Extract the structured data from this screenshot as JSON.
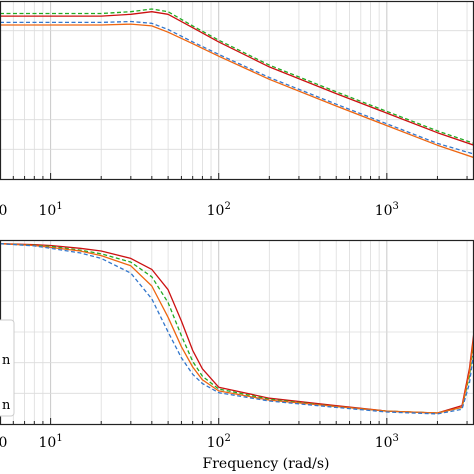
{
  "chart_data": [
    {
      "type": "line",
      "panel": "magnitude",
      "x_scale": "log",
      "xlim": [
        5,
        3300
      ],
      "x_ticks": [
        {
          "value": 10,
          "base": "10",
          "exp": "1"
        },
        {
          "value": 100,
          "base": "10",
          "exp": "2"
        },
        {
          "value": 1000,
          "base": "10",
          "exp": "3"
        }
      ],
      "ylim": [
        0,
        1
      ],
      "grid": true,
      "series": [
        {
          "color": "#22aa22",
          "style": "dashed",
          "x": [
            5,
            10,
            20,
            30,
            40,
            50,
            70,
            100,
            200,
            500,
            1000,
            2000,
            3300
          ],
          "y": [
            0.93,
            0.93,
            0.93,
            0.94,
            0.955,
            0.94,
            0.86,
            0.78,
            0.64,
            0.49,
            0.38,
            0.27,
            0.2
          ]
        },
        {
          "color": "#cc1111",
          "style": "solid",
          "x": [
            5,
            10,
            20,
            30,
            40,
            50,
            70,
            100,
            200,
            500,
            1000,
            2000,
            3300
          ],
          "y": [
            0.915,
            0.915,
            0.915,
            0.925,
            0.94,
            0.925,
            0.85,
            0.77,
            0.63,
            0.48,
            0.37,
            0.26,
            0.19
          ]
        },
        {
          "color": "#3377cc",
          "style": "dashed",
          "x": [
            5,
            10,
            20,
            30,
            40,
            50,
            70,
            100,
            200,
            500,
            1000,
            2000,
            3300
          ],
          "y": [
            0.88,
            0.88,
            0.88,
            0.885,
            0.875,
            0.84,
            0.77,
            0.7,
            0.57,
            0.42,
            0.31,
            0.2,
            0.14
          ]
        },
        {
          "color": "#ee6611",
          "style": "solid",
          "x": [
            5,
            10,
            20,
            30,
            40,
            50,
            70,
            100,
            200,
            500,
            1000,
            2000,
            3300
          ],
          "y": [
            0.865,
            0.865,
            0.865,
            0.87,
            0.86,
            0.825,
            0.76,
            0.69,
            0.56,
            0.41,
            0.3,
            0.19,
            0.12
          ]
        }
      ]
    },
    {
      "type": "line",
      "panel": "phase",
      "x_scale": "log",
      "xlim": [
        5,
        3300
      ],
      "x_ticks": [
        {
          "value": 10,
          "base": "10",
          "exp": "1"
        },
        {
          "value": 100,
          "base": "10",
          "exp": "2"
        },
        {
          "value": 1000,
          "base": "10",
          "exp": "3"
        }
      ],
      "xlabel": "Frequency (rad/s)",
      "ylim": [
        0,
        1
      ],
      "grid": true,
      "legend_position": "left",
      "legend_entries": [
        "n",
        "n"
      ],
      "series": [
        {
          "color": "#cc1111",
          "style": "solid",
          "x": [
            5,
            8,
            10,
            15,
            20,
            30,
            40,
            50,
            60,
            70,
            80,
            100,
            200,
            500,
            1000,
            2000,
            2800,
            3100,
            3300
          ],
          "y": [
            0.98,
            0.975,
            0.97,
            0.955,
            0.94,
            0.9,
            0.84,
            0.73,
            0.56,
            0.4,
            0.3,
            0.2,
            0.14,
            0.1,
            0.07,
            0.06,
            0.1,
            0.3,
            0.5
          ]
        },
        {
          "color": "#22aa22",
          "style": "dashed",
          "x": [
            5,
            8,
            10,
            15,
            20,
            30,
            40,
            50,
            60,
            70,
            80,
            100,
            200,
            500,
            1000,
            2000,
            2800,
            3100,
            3300
          ],
          "y": [
            0.98,
            0.972,
            0.965,
            0.945,
            0.925,
            0.88,
            0.8,
            0.66,
            0.48,
            0.34,
            0.26,
            0.19,
            0.135,
            0.095,
            0.07,
            0.06,
            0.09,
            0.26,
            0.45
          ]
        },
        {
          "color": "#ee6611",
          "style": "solid",
          "x": [
            5,
            8,
            10,
            15,
            20,
            30,
            40,
            50,
            60,
            70,
            80,
            100,
            200,
            500,
            1000,
            2000,
            2800,
            3100,
            3300
          ],
          "y": [
            0.98,
            0.97,
            0.96,
            0.94,
            0.915,
            0.86,
            0.75,
            0.58,
            0.42,
            0.31,
            0.24,
            0.18,
            0.13,
            0.095,
            0.07,
            0.06,
            0.09,
            0.28,
            0.48
          ]
        },
        {
          "color": "#3377cc",
          "style": "dashed",
          "x": [
            5,
            8,
            10,
            15,
            20,
            30,
            40,
            50,
            60,
            70,
            80,
            100,
            200,
            500,
            1000,
            2000,
            2800,
            3100,
            3300
          ],
          "y": [
            0.98,
            0.968,
            0.955,
            0.93,
            0.9,
            0.82,
            0.68,
            0.5,
            0.36,
            0.27,
            0.22,
            0.17,
            0.125,
            0.09,
            0.065,
            0.055,
            0.08,
            0.22,
            0.4
          ]
        }
      ]
    }
  ]
}
